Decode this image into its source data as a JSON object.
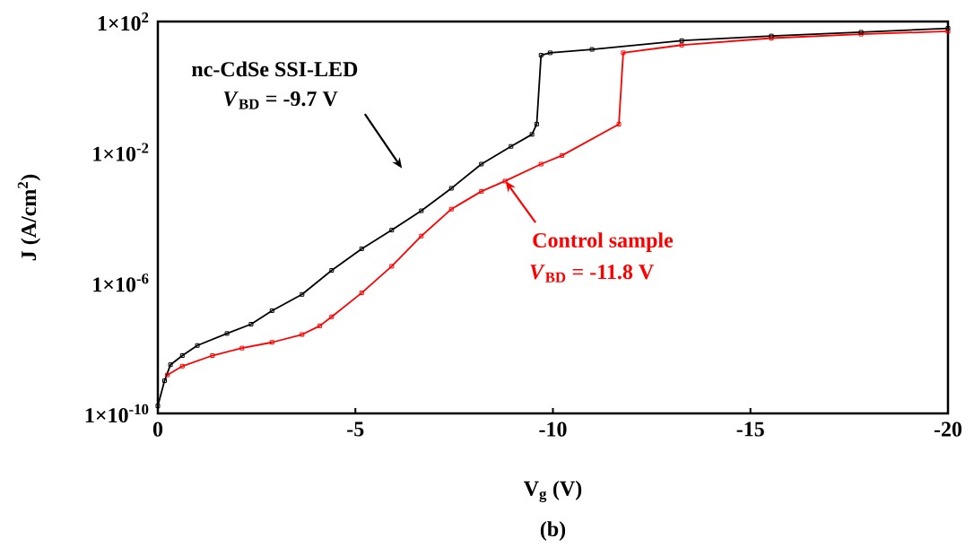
{
  "chart_data": {
    "type": "line",
    "xlabel": "V$_{g}$ (V)",
    "ylabel": "J (A/cm$^{2}$)",
    "log": "y",
    "marker": "square",
    "xlim": [
      0,
      -20
    ],
    "xticks": [
      0,
      -5,
      -10,
      -15,
      -20
    ],
    "ylim": [
      1e-10,
      100
    ],
    "yticks": [
      {
        "value": 100,
        "label": "1×10$^{2}$"
      },
      {
        "value": 0.01,
        "label": "1×10$^{-2}$"
      },
      {
        "value": 1e-06,
        "label": "1×10$^{-6}$"
      },
      {
        "value": 1e-10,
        "label": "1×10$^{-10}$"
      }
    ],
    "series": [
      {
        "color": "#000000",
        "x": [
          0,
          -0.17,
          -0.32,
          -0.62,
          -1.0,
          -1.75,
          -2.36,
          -2.89,
          -3.65,
          -4.4,
          -5.16,
          -5.92,
          -6.67,
          -7.43,
          -8.19,
          -8.94,
          -9.47,
          -9.59,
          -9.7,
          -9.93,
          -10.99,
          -13.26,
          -15.53,
          -17.8,
          -20
        ],
        "values": [
          1.7e-10,
          1e-09,
          3.1e-09,
          5.9e-09,
          1.2e-08,
          2.8e-08,
          5.4e-08,
          1.4e-07,
          4.4e-07,
          2.4e-06,
          1.1e-05,
          4.1e-05,
          0.00016,
          0.00078,
          0.0043,
          0.015,
          0.035,
          0.072,
          9.3,
          11,
          14,
          26,
          36,
          47,
          62
        ]
      },
      {
        "color": "#ff0000",
        "x": [
          -0.24,
          -0.62,
          -1.38,
          -2.13,
          -2.89,
          -3.65,
          -4.1,
          -4.4,
          -5.16,
          -5.92,
          -6.67,
          -7.43,
          -8.19,
          -8.79,
          -9.7,
          -10.23,
          -11.67,
          -11.78,
          -13.26,
          -15.53,
          -17.8,
          -20
        ],
        "values": [
          1.5e-09,
          2.8e-09,
          5.9e-09,
          1e-08,
          1.5e-08,
          2.6e-08,
          4.8e-08,
          9.1e-08,
          4.9e-07,
          3.2e-06,
          2.7e-05,
          0.00018,
          0.00063,
          0.0013,
          0.0043,
          0.0079,
          0.072,
          11,
          19,
          31,
          41,
          50
        ]
      }
    ],
    "annotations": [
      "nc-CdSe SSI-LED",
      "*V*$_{BD}$ = -9.7 V",
      {
        "text": "Control sample",
        "x": -8.8,
        "y": 0.0013
      },
      "*V*$_{BD}$ = -11.8 V",
      "(b)"
    ]
  }
}
